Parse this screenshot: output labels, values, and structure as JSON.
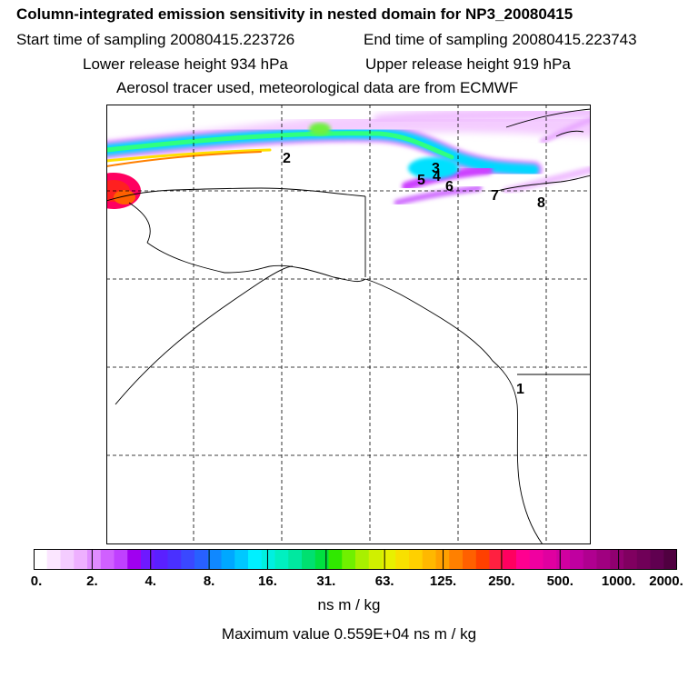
{
  "header": {
    "title": "Column-integrated emission sensitivity in nested domain for NP3_20080415",
    "start_sampling": "Start time of sampling 20080415.223726",
    "end_sampling": "End time of sampling 20080415.223743",
    "lower_release": "Lower release height  934 hPa",
    "upper_release": "Upper release height  919 hPa",
    "tracer_note": "Aerosol tracer used, meteorological data are from ECMWF"
  },
  "map": {
    "point_labels": [
      "2",
      "3",
      "4",
      "5",
      "6",
      "7",
      "8",
      "1"
    ],
    "grid": "dashed",
    "colors": {
      "land_outline": "#000000",
      "grid_line": "#000000",
      "plume_low": "#f0c8ff",
      "plume_mid": "#00e6ff",
      "plume_high": "#ff0040"
    }
  },
  "colorbar": {
    "tick_labels": [
      "0.",
      "2.",
      "4.",
      "8.",
      "16.",
      "31.",
      "63.",
      "125.",
      "250.",
      "500.",
      "1000.",
      "2000."
    ],
    "colors": [
      "#ffffff",
      "#fbe6ff",
      "#f4ccff",
      "#eeb0ff",
      "#e08cff",
      "#d060ff",
      "#c040ff",
      "#a000f0",
      "#6e19ff",
      "#5a20ff",
      "#4a30ff",
      "#3a48ff",
      "#2860ff",
      "#1088ff",
      "#00a8ff",
      "#00c8ff",
      "#00f0ff",
      "#00f0e0",
      "#00f0c0",
      "#00e8a0",
      "#00e070",
      "#00e040",
      "#30e800",
      "#70f000",
      "#a8f000",
      "#d0f000",
      "#e8f000",
      "#f8e000",
      "#ffd000",
      "#ffb800",
      "#ffa000",
      "#ff8000",
      "#ff6000",
      "#ff4000",
      "#ff2040",
      "#ff0060",
      "#ff0090",
      "#f000a0",
      "#e000a0",
      "#d000a0",
      "#c000a0",
      "#b00090",
      "#a00080",
      "#900070",
      "#800060",
      "#700058",
      "#600050",
      "#500040"
    ],
    "units": "ns m / kg",
    "max_value": "Maximum value  0.559E+04 ns m / kg"
  }
}
